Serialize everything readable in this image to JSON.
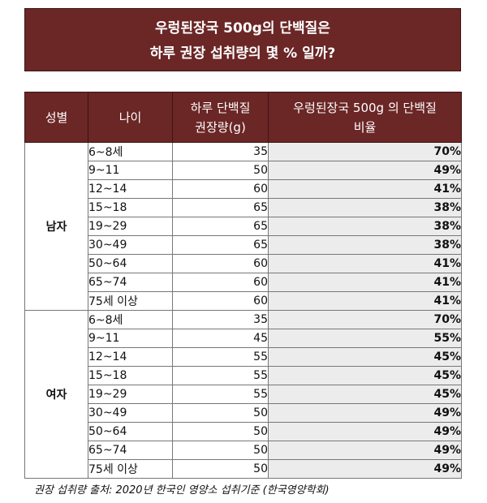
{
  "title": {
    "line1": "우렁된장국 500g의 단백질은",
    "line2": "하루 권장 섭취량의 몇 % 일까?"
  },
  "table": {
    "headers": {
      "gender": "성별",
      "age": "나이",
      "intake_l1": "하루 단백질",
      "intake_l2": "권장량(g)",
      "ratio_l1": "우렁된장국 500g 의 단백질",
      "ratio_l2": "비율"
    },
    "groups": [
      {
        "gender": "남자",
        "rows": [
          {
            "age": "6~8세",
            "intake": "35",
            "ratio": "70%"
          },
          {
            "age": "9~11",
            "intake": "50",
            "ratio": "49%"
          },
          {
            "age": "12~14",
            "intake": "60",
            "ratio": "41%"
          },
          {
            "age": "15~18",
            "intake": "65",
            "ratio": "38%"
          },
          {
            "age": "19~29",
            "intake": "65",
            "ratio": "38%"
          },
          {
            "age": "30~49",
            "intake": "65",
            "ratio": "38%"
          },
          {
            "age": "50~64",
            "intake": "60",
            "ratio": "41%"
          },
          {
            "age": "65~74",
            "intake": "60",
            "ratio": "41%"
          },
          {
            "age": "75세 이상",
            "intake": "60",
            "ratio": "41%"
          }
        ]
      },
      {
        "gender": "여자",
        "rows": [
          {
            "age": "6~8세",
            "intake": "35",
            "ratio": "70%"
          },
          {
            "age": "9~11",
            "intake": "45",
            "ratio": "55%"
          },
          {
            "age": "12~14",
            "intake": "55",
            "ratio": "45%"
          },
          {
            "age": "15~18",
            "intake": "55",
            "ratio": "45%"
          },
          {
            "age": "19~29",
            "intake": "55",
            "ratio": "45%"
          },
          {
            "age": "30~49",
            "intake": "50",
            "ratio": "49%"
          },
          {
            "age": "50~64",
            "intake": "50",
            "ratio": "49%"
          },
          {
            "age": "65~74",
            "intake": "50",
            "ratio": "49%"
          },
          {
            "age": "75세 이상",
            "intake": "50",
            "ratio": "49%"
          }
        ]
      }
    ]
  },
  "footnote": "권장 섭취량 출처: 2020년 한국인 영양소 섭취기준 (한국영양학회)",
  "colors": {
    "header_bg": "#6b2626",
    "ratio_bg": "#ececec"
  }
}
